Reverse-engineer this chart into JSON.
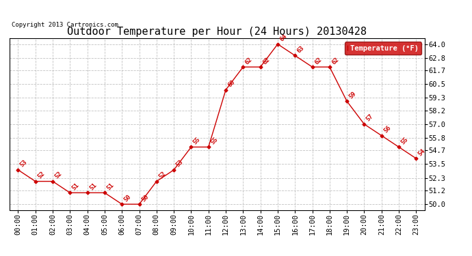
{
  "title": "Outdoor Temperature per Hour (24 Hours) 20130428",
  "copyright_text": "Copyright 2013 Cartronics.com",
  "legend_label": "Temperature (°F)",
  "hours": [
    "00:00",
    "01:00",
    "02:00",
    "03:00",
    "04:00",
    "05:00",
    "06:00",
    "07:00",
    "08:00",
    "09:00",
    "10:00",
    "11:00",
    "12:00",
    "13:00",
    "14:00",
    "15:00",
    "16:00",
    "17:00",
    "18:00",
    "19:00",
    "20:00",
    "21:00",
    "22:00",
    "23:00"
  ],
  "temperatures": [
    53,
    52,
    52,
    51,
    51,
    51,
    50,
    50,
    52,
    53,
    55,
    55,
    60,
    62,
    62,
    64,
    63,
    62,
    62,
    59,
    57,
    56,
    55,
    54
  ],
  "ylim": [
    49.5,
    64.5
  ],
  "yticks": [
    50.0,
    51.2,
    52.3,
    53.5,
    54.7,
    55.8,
    57.0,
    58.2,
    59.3,
    60.5,
    61.7,
    62.8,
    64.0
  ],
  "line_color": "#cc0000",
  "marker_color": "#cc0000",
  "bg_color": "#ffffff",
  "grid_color": "#bbbbbb",
  "title_fontsize": 11,
  "label_fontsize": 7.5,
  "annotation_fontsize": 6.5,
  "legend_bg": "#cc0000",
  "legend_text_color": "#ffffff"
}
